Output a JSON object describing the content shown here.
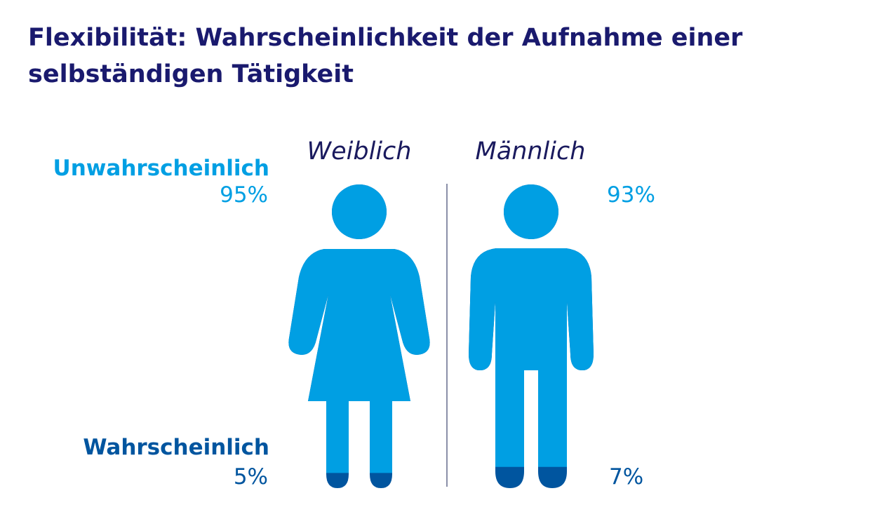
{
  "title": "Flexibilität: Wahrscheinlichkeit der Aufnahme einer selbständigen Tätigkeit",
  "colors": {
    "title": "#1a1a6e",
    "unlikely": "#009fe3",
    "likely": "#00559f",
    "gender_text": "#1a1a5e",
    "divider": "#8a8fa8"
  },
  "categories": {
    "unlikely": "Unwahrscheinlich",
    "likely": "Wahrscheinlich"
  },
  "chart_data": {
    "type": "bar",
    "title": "Flexibilität: Wahrscheinlichkeit der Aufnahme einer selbständigen Tätigkeit",
    "categories": [
      "Weiblich",
      "Männlich"
    ],
    "series": [
      {
        "name": "Unwahrscheinlich",
        "values": [
          95,
          93
        ],
        "labels": [
          "95%",
          "93%"
        ]
      },
      {
        "name": "Wahrscheinlich",
        "values": [
          5,
          7
        ],
        "labels": [
          "5%",
          "7%"
        ]
      }
    ],
    "stacked": true,
    "ylim": [
      0,
      100
    ],
    "marks": "person-icons"
  }
}
